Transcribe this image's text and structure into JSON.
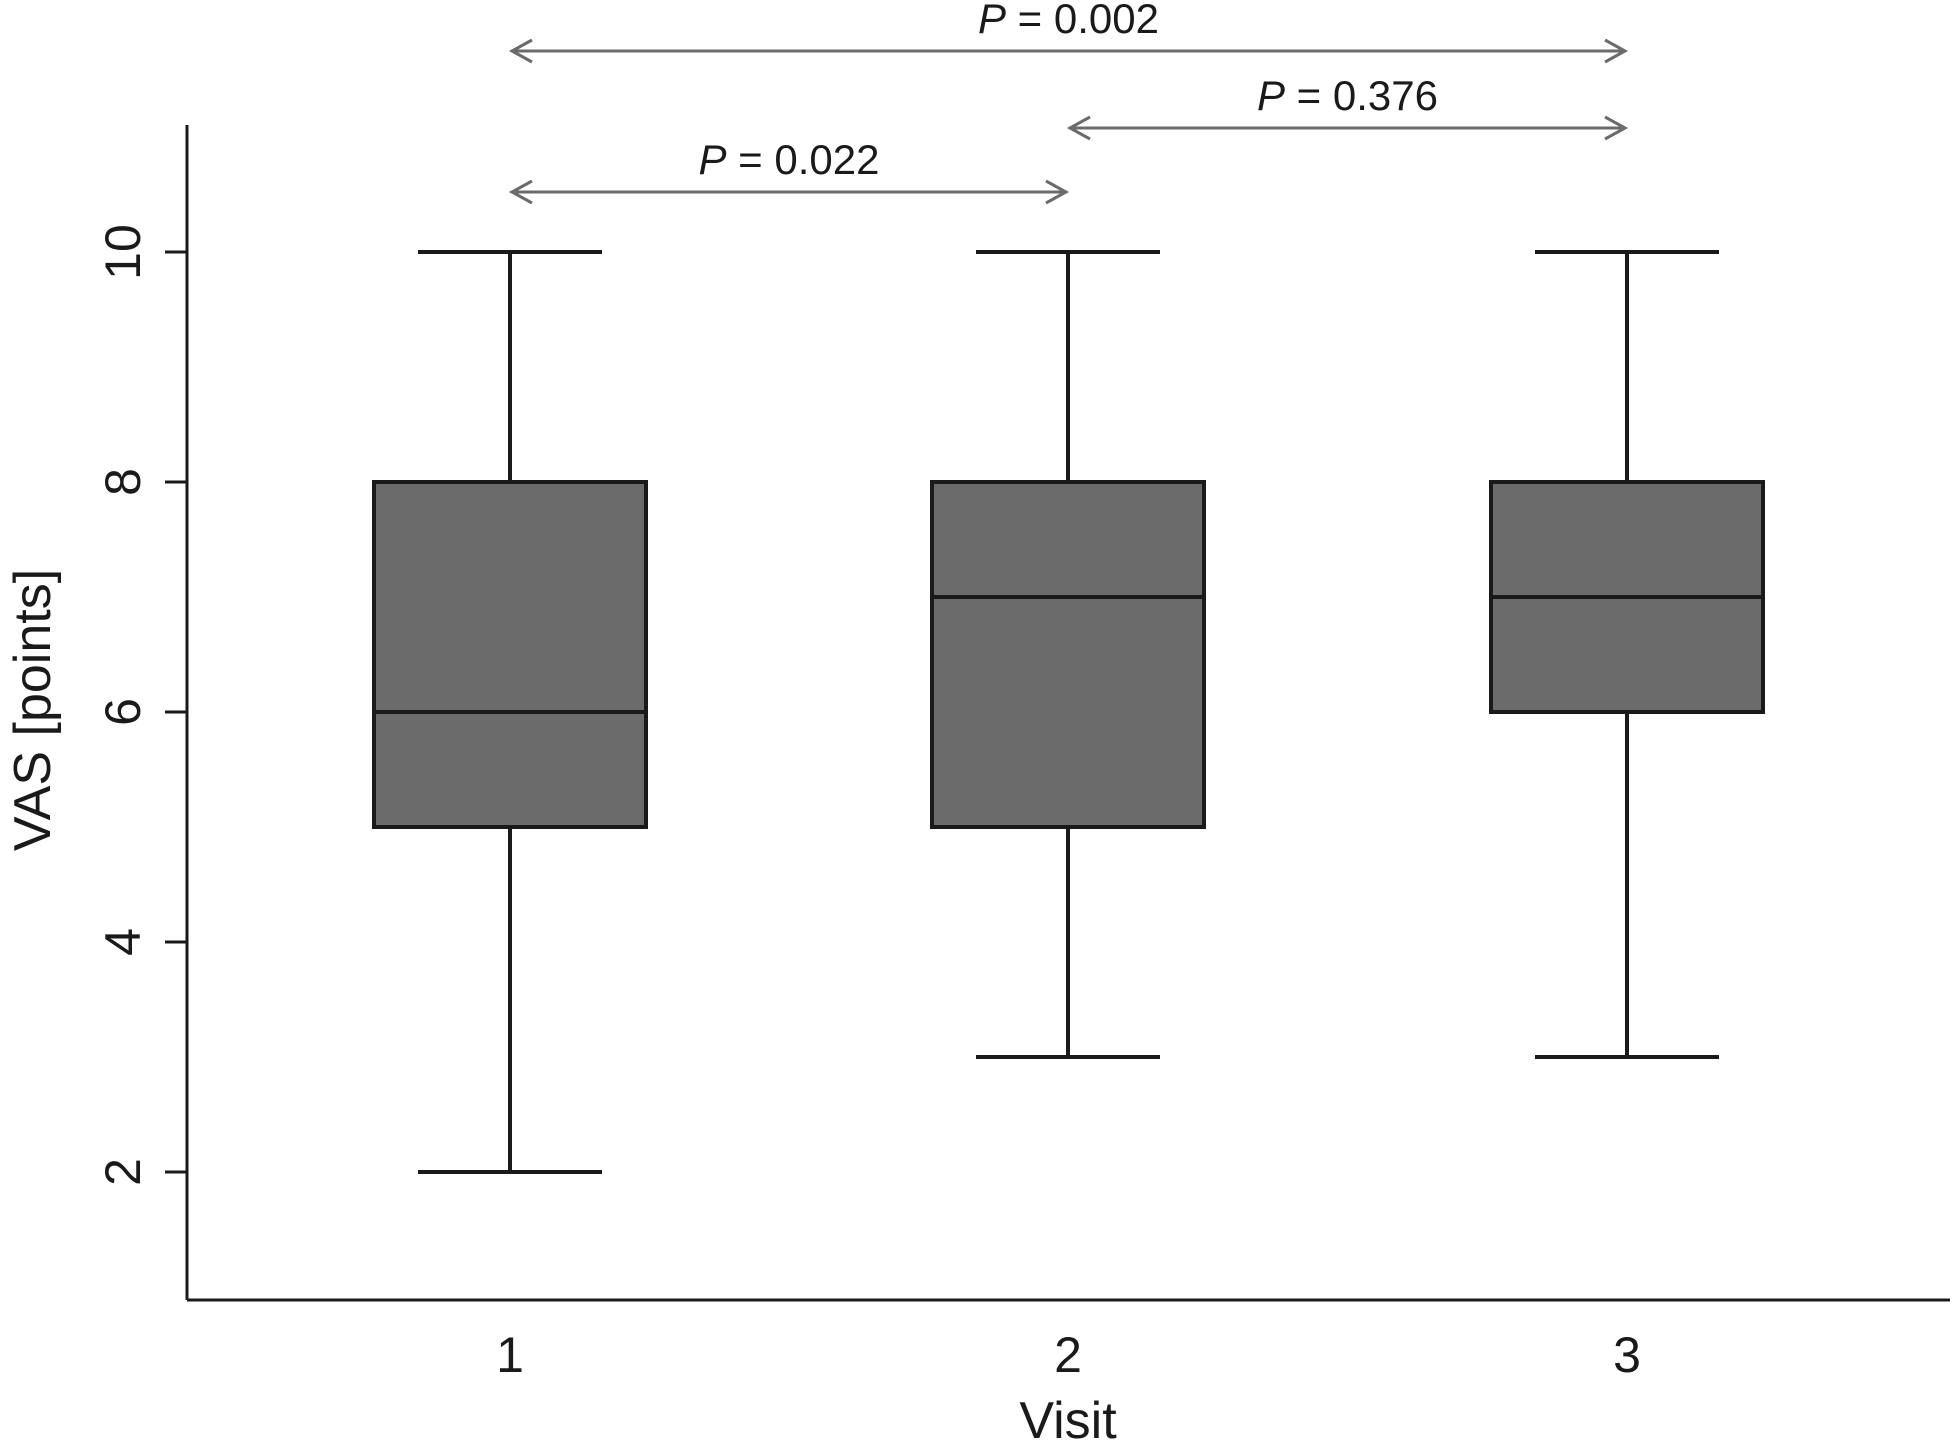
{
  "chart_data": {
    "type": "box",
    "xlabel": "Visit",
    "ylabel": "VAS [points]",
    "categories": [
      "1",
      "2",
      "3"
    ],
    "boxes": [
      {
        "category": "1",
        "min": 2,
        "q1": 5,
        "median": 6,
        "q3": 8,
        "max": 10
      },
      {
        "category": "2",
        "min": 3,
        "q1": 5,
        "median": 7,
        "q3": 8,
        "max": 10
      },
      {
        "category": "3",
        "min": 3,
        "q1": 6,
        "median": 7,
        "q3": 8,
        "max": 10
      }
    ],
    "yticks": [
      2,
      4,
      6,
      8,
      10
    ],
    "ylim": [
      1,
      11
    ],
    "box_color": "#6b6b6b",
    "comparisons": [
      {
        "from": "1",
        "to": "2",
        "p_symbol": "P",
        "p_text": " = 0.022",
        "level": 0
      },
      {
        "from": "2",
        "to": "3",
        "p_symbol": "P",
        "p_text": " = 0.376",
        "level": 1
      },
      {
        "from": "1",
        "to": "3",
        "p_symbol": "P",
        "p_text": " = 0.002",
        "level": 2
      }
    ]
  }
}
